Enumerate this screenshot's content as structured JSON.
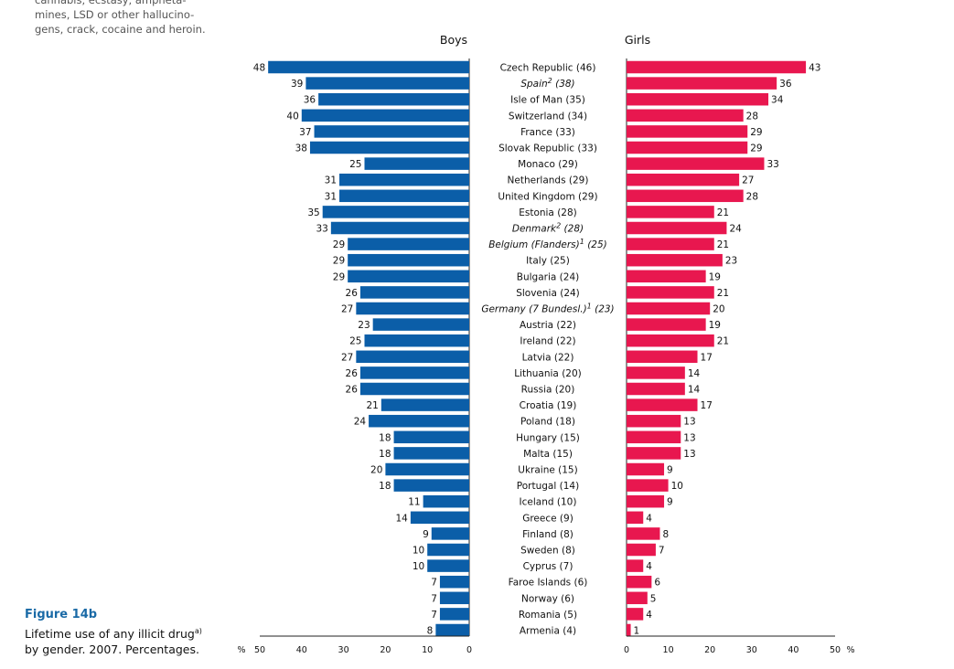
{
  "note": {
    "lines": [
      "cannabis, ecstasy, ampheta-",
      "mines, LSD or other hallucino-",
      "gens, crack, cocaine and heroin."
    ]
  },
  "figure": {
    "title": "Figure 14b",
    "caption_line1": "Lifetime use of any illicit drug",
    "caption_sup": "a)",
    "caption_line2": "by gender. 2007. Percentages."
  },
  "chart_data": {
    "type": "bar",
    "orientation": "horizontal-butterfly",
    "unit_label": "%",
    "panels": [
      {
        "name": "Boys",
        "color": "#0b5ea8",
        "direction": "left",
        "xlim": [
          0,
          50
        ],
        "ticks": [
          "50",
          "40",
          "30",
          "20",
          "10",
          "0"
        ]
      },
      {
        "name": "Girls",
        "color": "#e8174f",
        "direction": "right",
        "xlim": [
          0,
          50
        ],
        "ticks": [
          "0",
          "10",
          "20",
          "30",
          "40",
          "50"
        ]
      }
    ],
    "rows": [
      {
        "country": "Czech Republic (46)",
        "italic": false,
        "boys": 48,
        "girls": 43
      },
      {
        "country": "Spain",
        "sup": "2",
        "suffix": " (38)",
        "italic": true,
        "boys": 39,
        "girls": 36
      },
      {
        "country": "Isle of Man (35)",
        "italic": false,
        "boys": 36,
        "girls": 34
      },
      {
        "country": "Switzerland (34)",
        "italic": false,
        "boys": 40,
        "girls": 28
      },
      {
        "country": "France (33)",
        "italic": false,
        "boys": 37,
        "girls": 29
      },
      {
        "country": "Slovak Republic (33)",
        "italic": false,
        "boys": 38,
        "girls": 29
      },
      {
        "country": "Monaco (29)",
        "italic": false,
        "boys": 25,
        "girls": 33
      },
      {
        "country": "Netherlands (29)",
        "italic": false,
        "boys": 31,
        "girls": 27
      },
      {
        "country": "United Kingdom (29)",
        "italic": false,
        "boys": 31,
        "girls": 28
      },
      {
        "country": "Estonia (28)",
        "italic": false,
        "boys": 35,
        "girls": 21
      },
      {
        "country": "Denmark",
        "sup": "2",
        "suffix": " (28)",
        "italic": true,
        "boys": 33,
        "girls": 24
      },
      {
        "country": "Belgium (Flanders)",
        "sup": "1",
        "suffix": " (25)",
        "italic": true,
        "boys": 29,
        "girls": 21
      },
      {
        "country": "Italy (25)",
        "italic": false,
        "boys": 29,
        "girls": 23
      },
      {
        "country": "Bulgaria (24)",
        "italic": false,
        "boys": 29,
        "girls": 19
      },
      {
        "country": "Slovenia (24)",
        "italic": false,
        "boys": 26,
        "girls": 21
      },
      {
        "country": "Germany (7 Bundesl.)",
        "sup": "1",
        "suffix": " (23)",
        "italic": true,
        "boys": 27,
        "girls": 20
      },
      {
        "country": "Austria (22)",
        "italic": false,
        "boys": 23,
        "girls": 19
      },
      {
        "country": "Ireland (22)",
        "italic": false,
        "boys": 25,
        "girls": 21
      },
      {
        "country": "Latvia (22)",
        "italic": false,
        "boys": 27,
        "girls": 17
      },
      {
        "country": "Lithuania (20)",
        "italic": false,
        "boys": 26,
        "girls": 14
      },
      {
        "country": "Russia (20)",
        "italic": false,
        "boys": 26,
        "girls": 14
      },
      {
        "country": "Croatia (19)",
        "italic": false,
        "boys": 21,
        "girls": 17
      },
      {
        "country": "Poland (18)",
        "italic": false,
        "boys": 24,
        "girls": 13
      },
      {
        "country": "Hungary (15)",
        "italic": false,
        "boys": 18,
        "girls": 13
      },
      {
        "country": "Malta (15)",
        "italic": false,
        "boys": 18,
        "girls": 13
      },
      {
        "country": "Ukraine (15)",
        "italic": false,
        "boys": 20,
        "girls": 9
      },
      {
        "country": "Portugal (14)",
        "italic": false,
        "boys": 18,
        "girls": 10
      },
      {
        "country": "Iceland (10)",
        "italic": false,
        "boys": 11,
        "girls": 9
      },
      {
        "country": "Greece (9)",
        "italic": false,
        "boys": 14,
        "girls": 4
      },
      {
        "country": "Finland (8)",
        "italic": false,
        "boys": 9,
        "girls": 8
      },
      {
        "country": "Sweden (8)",
        "italic": false,
        "boys": 10,
        "girls": 7
      },
      {
        "country": "Cyprus (7)",
        "italic": false,
        "boys": 10,
        "girls": 4
      },
      {
        "country": "Faroe Islands (6)",
        "italic": false,
        "boys": 7,
        "girls": 6
      },
      {
        "country": "Norway (6)",
        "italic": false,
        "boys": 7,
        "girls": 5
      },
      {
        "country": "Romania (5)",
        "italic": false,
        "boys": 7,
        "girls": 4
      },
      {
        "country": "Armenia (4)",
        "italic": false,
        "boys": 8,
        "girls": 1
      }
    ]
  }
}
